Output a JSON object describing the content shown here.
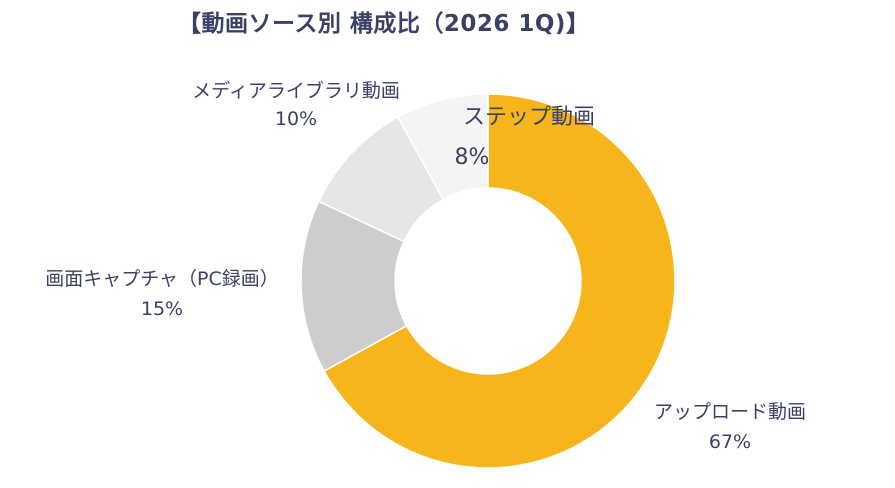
{
  "title": "【動画ソース別 構成比（2026 1Q)】",
  "chart_data": {
    "type": "pie",
    "style": "donut",
    "title": "【動画ソース別 構成比（2026 1Q)】",
    "start": "12 o'clock",
    "direction": "clockwise",
    "slices": [
      {
        "label": "アップロード動画",
        "value": 67,
        "pct_label": "67%",
        "color": "#f7b51c"
      },
      {
        "label": "画面キャプチャ（PC録画）",
        "value": 15,
        "pct_label": "15%",
        "color": "#cdcdcd"
      },
      {
        "label": "メディアライブラリ動画",
        "value": 10,
        "pct_label": "10%",
        "color": "#e6e6e6"
      },
      {
        "label": "ステップ動画",
        "value": 8,
        "pct_label": "8%",
        "color": "#f4f4f4"
      }
    ]
  }
}
